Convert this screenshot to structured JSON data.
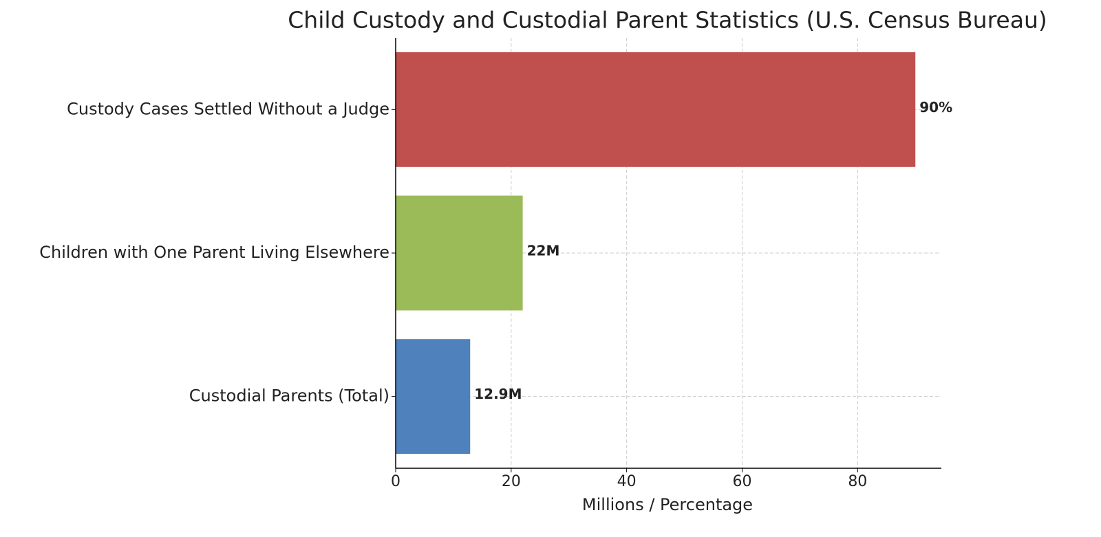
{
  "chart_data": {
    "type": "hbar",
    "title": "Child Custody and Custodial Parent Statistics (U.S. Census Bureau)",
    "x_label": "Millions / Percentage",
    "categories": [
      "Custodial Parents (Total)",
      "Children with One Parent Living Elsewhere",
      "Custody Cases Settled Without a Judge"
    ],
    "values": [
      12.9,
      22,
      90
    ],
    "value_labels": [
      "12.9M",
      "22M",
      "90%"
    ],
    "colors": [
      "#4f81bd",
      "#9bbb59",
      "#c0504d"
    ],
    "xlim": [
      0,
      94.5
    ],
    "xticks": [
      0,
      20,
      40,
      60,
      80
    ],
    "grid": true
  }
}
